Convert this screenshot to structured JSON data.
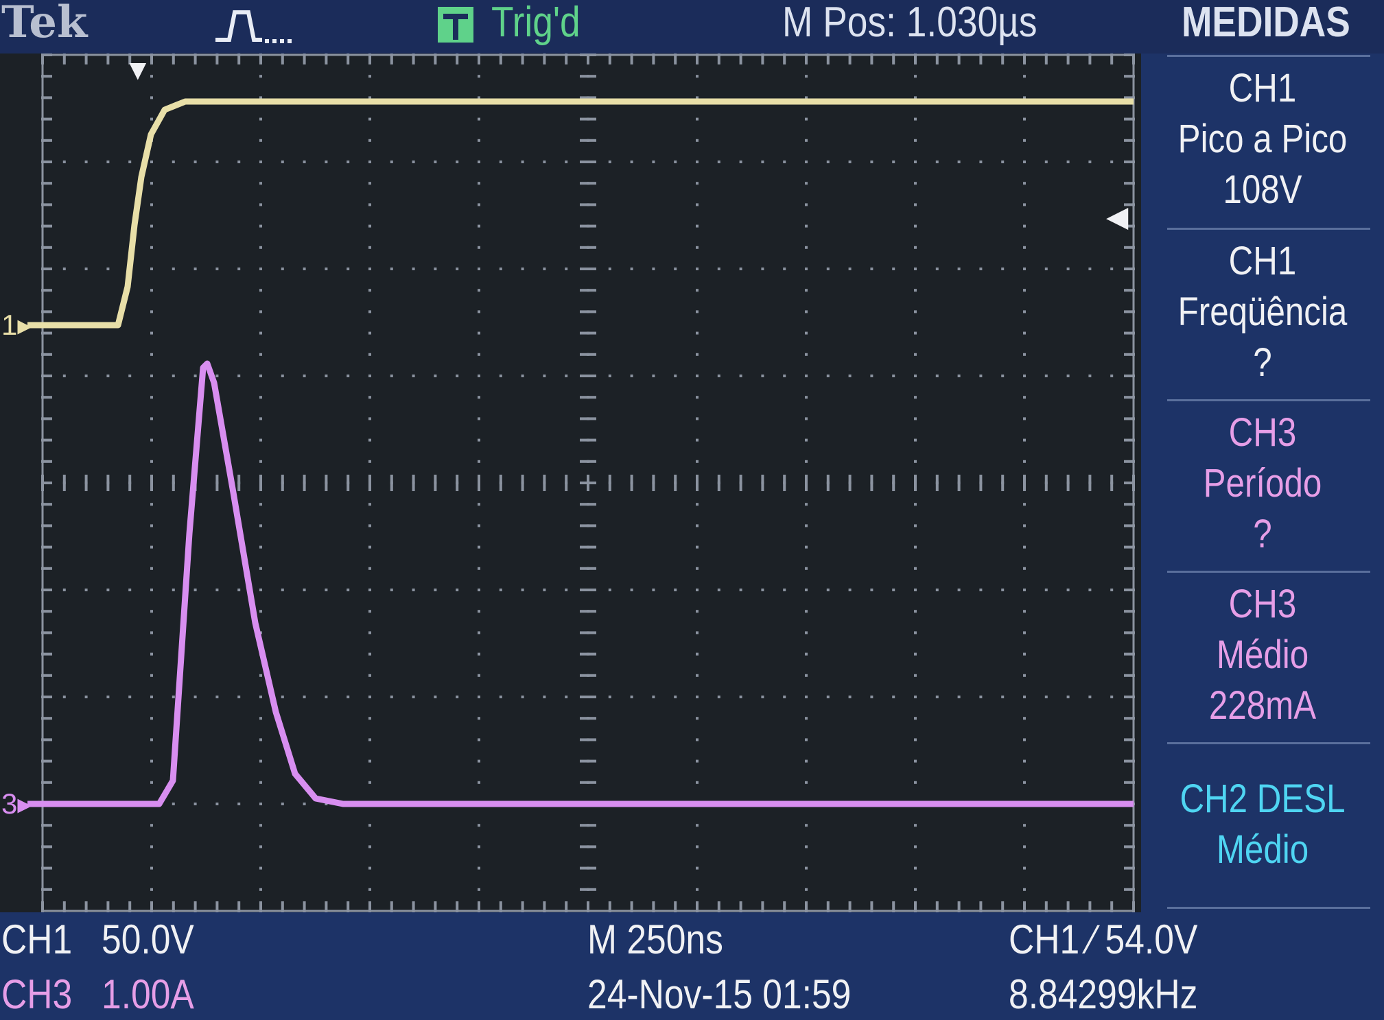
{
  "header": {
    "brand": "Tek",
    "trigger_status": "Trig'd",
    "m_pos": "M Pos: 1.030µs",
    "menu_title": "MEDIDAS"
  },
  "measurements": [
    {
      "source": "CH1",
      "type": "Pico a Pico",
      "value": "108V",
      "color": "#f0f1f4"
    },
    {
      "source": "CH1",
      "type": "Freqüência",
      "value": "?",
      "color": "#f0f1f4"
    },
    {
      "source": "CH3",
      "type": "Período",
      "value": "?",
      "color": "#e69ee7"
    },
    {
      "source": "CH3",
      "type": "Médio",
      "value": "228mA",
      "color": "#e69ee7"
    },
    {
      "source": "CH2 DESL",
      "type": "Médio",
      "value": "",
      "color": "#4fd5f2"
    }
  ],
  "bottom": {
    "ch1_label": "CH1",
    "ch1_scale": "50.0V",
    "ch3_label": "CH3",
    "ch3_scale": "1.00A",
    "timebase": "M 250ns",
    "datetime": "24-Nov-15 01:59",
    "trigger": "CH1 ∕ 54.0V",
    "frequency": "8.84299kHz"
  },
  "markers": {
    "ch1": "1",
    "ch3": "3"
  },
  "colors": {
    "ch1_trace": "#e8dfa8",
    "ch3_trace": "#d88ef0",
    "menu_background": "#1d3367",
    "screen_background": "#1c2126",
    "trigger_status": "#5fd28a"
  }
}
